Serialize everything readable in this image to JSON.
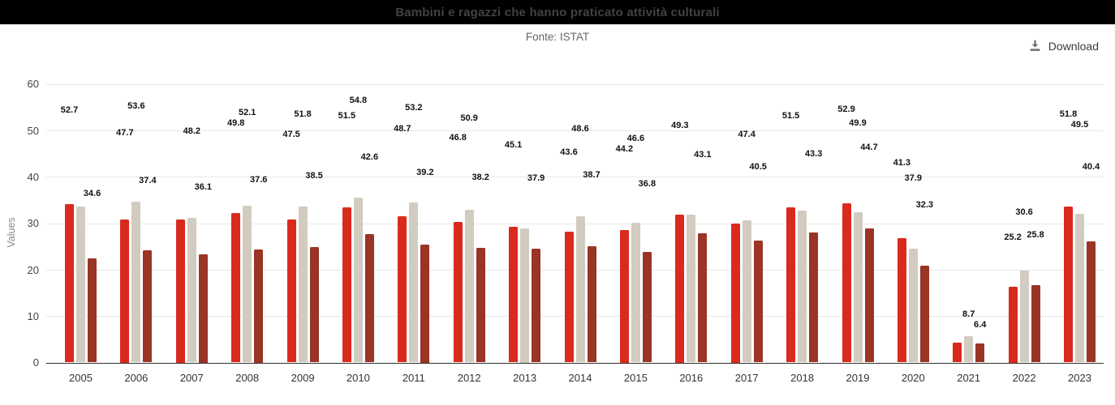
{
  "header": {
    "title": "Bambini e ragazzi che hanno praticato attività culturali",
    "source": "Fonte: ISTAT"
  },
  "toolbar": {
    "download_label": "Download"
  },
  "colors": {
    "title_bar_bg": "#000000",
    "title_text": "#424242",
    "series_red": "#da2a1d",
    "series_beige": "#d2ccc0",
    "series_dark_red": "#9a3425",
    "gridline": "#e8e8e8",
    "axis_line": "#2f2f2f"
  },
  "chart_data": {
    "type": "bar",
    "title": "Bambini e ragazzi che hanno praticato attività culturali",
    "subtitle": "Fonte: ISTAT",
    "xlabel": "",
    "ylabel": "Values",
    "ylim": [
      0,
      60
    ],
    "yticks": [
      0,
      10,
      20,
      30,
      40,
      50,
      60
    ],
    "grid": true,
    "legend_position": "none",
    "categories": [
      "2005",
      "2006",
      "2007",
      "2008",
      "2009",
      "2010",
      "2011",
      "2012",
      "2013",
      "2014",
      "2015",
      "2016",
      "2017",
      "2018",
      "2019",
      "2020",
      "2021",
      "2022",
      "2023"
    ],
    "series": [
      {
        "name": "red",
        "color": "#da2a1d",
        "values": [
          52.7,
          47.7,
          47.7,
          49.8,
          47.5,
          51.5,
          48.7,
          46.8,
          45.1,
          43.6,
          44.2,
          49.3,
          46.2,
          51.5,
          52.9,
          41.3,
          6.5,
          25.2,
          51.8
        ],
        "label_visible": [
          true,
          true,
          false,
          true,
          true,
          true,
          true,
          true,
          true,
          true,
          true,
          true,
          false,
          true,
          true,
          true,
          false,
          true,
          true
        ]
      },
      {
        "name": "beige",
        "color": "#d2ccc0",
        "values": [
          51.8,
          53.6,
          48.2,
          52.1,
          51.8,
          54.8,
          53.2,
          50.9,
          44.6,
          48.6,
          46.6,
          49.2,
          47.4,
          50.5,
          49.9,
          37.9,
          8.7,
          30.6,
          49.5
        ],
        "label_visible": [
          false,
          true,
          true,
          true,
          true,
          true,
          true,
          true,
          false,
          true,
          true,
          false,
          true,
          false,
          true,
          true,
          true,
          true,
          true
        ]
      },
      {
        "name": "dark-red",
        "color": "#9a3425",
        "values": [
          34.6,
          37.4,
          36.1,
          37.6,
          38.5,
          42.6,
          39.2,
          38.2,
          37.9,
          38.7,
          36.8,
          43.1,
          40.5,
          43.3,
          44.7,
          32.3,
          6.4,
          25.8,
          40.4
        ],
        "label_visible": [
          true,
          true,
          true,
          true,
          true,
          true,
          true,
          true,
          true,
          true,
          true,
          true,
          true,
          true,
          true,
          true,
          true,
          true,
          true
        ]
      }
    ],
    "layout_hints": {
      "bar_render_scale": 0.648,
      "labels_placed_at_true_value_height": true
    }
  }
}
